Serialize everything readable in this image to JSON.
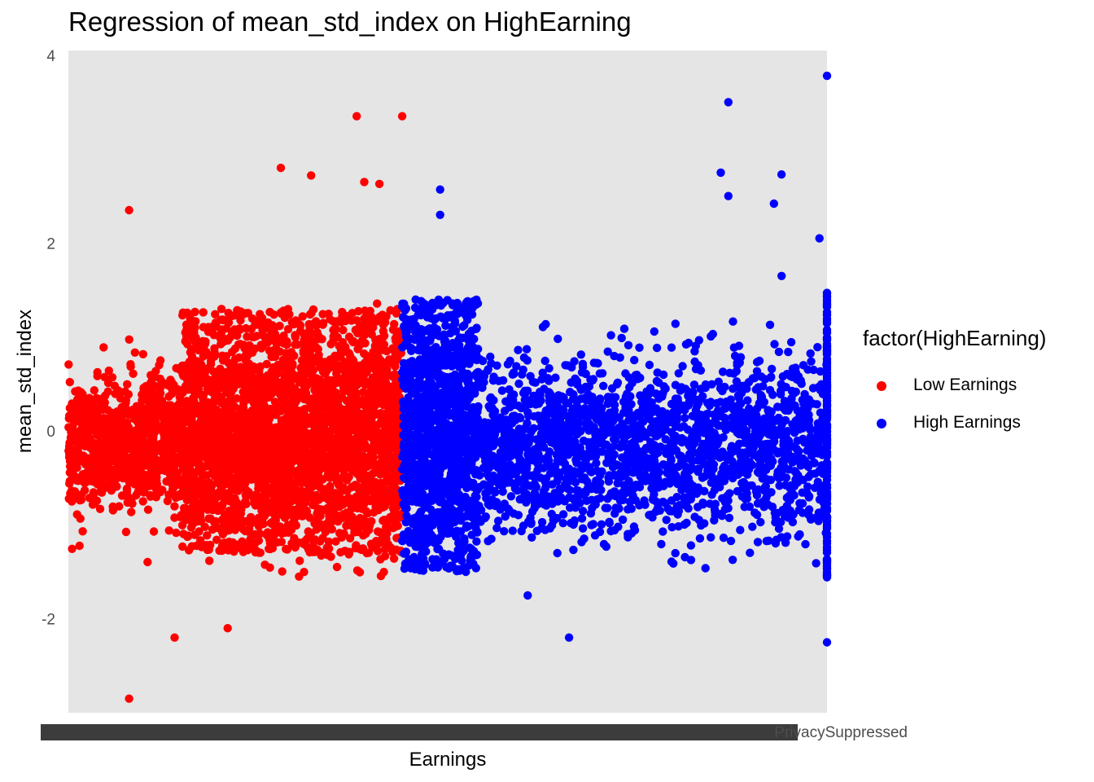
{
  "chart_data": {
    "type": "scatter",
    "title": "Regression of mean_std_index on HighEarning",
    "xlabel": "Earnings",
    "ylabel": "mean_std_index",
    "ylim": [
      -3.0,
      4.05
    ],
    "yticks": [
      -2,
      0,
      2,
      4
    ],
    "ytick_labels": [
      "-2",
      "0",
      "2",
      "4"
    ],
    "x_tick_labels_visible_text": "PrivacySuppressed",
    "x_tick_labels_note": "hundreds of overlapping categorical earnings labels render as a dark smeared band",
    "grid": false,
    "legend": {
      "title": "factor(HighEarning)",
      "placement": "right",
      "entries": [
        {
          "label": "Low Earnings",
          "color": "#ff0000"
        },
        {
          "label": "High Earnings",
          "color": "#0000ff"
        }
      ]
    },
    "panel_background": "#e5e5e5",
    "series": [
      {
        "name": "Low Earnings",
        "color": "#ff0000",
        "x_range": [
          0.0,
          0.44
        ],
        "core_y_range": [
          -1.3,
          1.3
        ],
        "highlighted_points": [
          {
            "x": 0.08,
            "y": -2.85
          },
          {
            "x": 0.08,
            "y": 2.35
          },
          {
            "x": 0.38,
            "y": 3.35
          },
          {
            "x": 0.44,
            "y": 3.35
          },
          {
            "x": 0.28,
            "y": 2.8
          },
          {
            "x": 0.32,
            "y": 2.72
          },
          {
            "x": 0.39,
            "y": 2.65
          },
          {
            "x": 0.41,
            "y": 2.63
          },
          {
            "x": 0.14,
            "y": -2.2
          },
          {
            "x": 0.21,
            "y": -2.1
          }
        ]
      },
      {
        "name": "High Earnings",
        "color": "#0000ff",
        "x_range": [
          0.44,
          1.0
        ],
        "core_y_range": [
          -1.5,
          1.4
        ],
        "highlighted_points": [
          {
            "x": 1.0,
            "y": 3.78
          },
          {
            "x": 0.87,
            "y": 3.5
          },
          {
            "x": 0.86,
            "y": 2.75
          },
          {
            "x": 0.94,
            "y": 2.73
          },
          {
            "x": 0.87,
            "y": 2.5
          },
          {
            "x": 0.93,
            "y": 2.42
          },
          {
            "x": 0.49,
            "y": 2.57
          },
          {
            "x": 0.49,
            "y": 2.3
          },
          {
            "x": 0.99,
            "y": 2.05
          },
          {
            "x": 0.66,
            "y": -2.2
          },
          {
            "x": 1.0,
            "y": -2.25
          }
        ]
      }
    ]
  }
}
